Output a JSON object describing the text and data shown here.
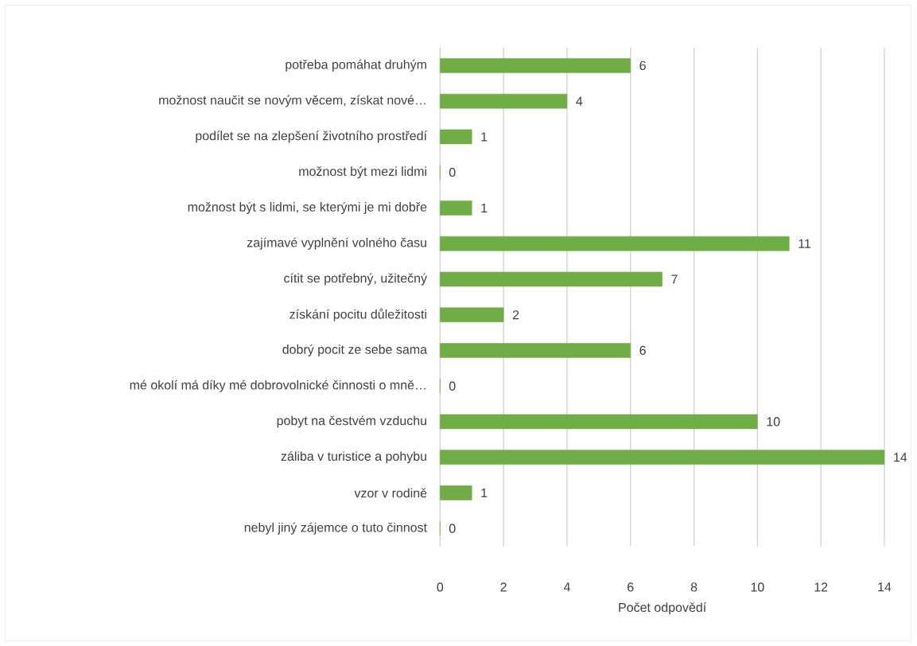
{
  "chart_data": {
    "type": "bar",
    "orientation": "horizontal",
    "xlabel": "Počet odpovědí",
    "categories": [
      "potřeba pomáhat druhým",
      "možnost naučit se novým věcem, získat nové…",
      "podílet se na zlepšení životního prostředí",
      "možnost být mezi lidmi",
      "možnost být s lidmi, se kterými je mi dobře",
      "zajímavé vyplnění volného času",
      "cítit se potřebný, užitečný",
      "získání pocitu důležitosti",
      "dobrý pocit ze sebe sama",
      "mé okolí má díky mé dobrovolnické činnosti o mně…",
      "pobyt na čestvém vzduchu",
      "záliba v turistice a pohybu",
      "vzor v rodině",
      "nebyl jiný zájemce o tuto činnost"
    ],
    "values": [
      6,
      4,
      1,
      0,
      1,
      11,
      7,
      2,
      6,
      0,
      10,
      14,
      1,
      0
    ],
    "color": "#70ad47",
    "xlim": [
      0,
      14
    ],
    "xticks": [
      0,
      2,
      4,
      6,
      8,
      10,
      12,
      14
    ],
    "grid": "x",
    "data_labels": true
  }
}
